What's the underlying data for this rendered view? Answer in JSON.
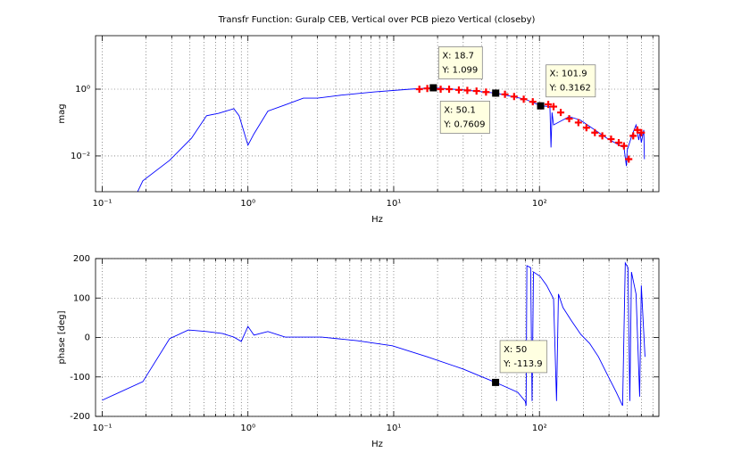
{
  "chart_data": [
    {
      "type": "line",
      "title": "Transfr Function: Guralp CEB, Vertical over PCB piezo Vertical (closeby)",
      "xlabel": "Hz",
      "ylabel": "mag",
      "xscale": "log",
      "yscale": "log",
      "grid": true,
      "xlim": [
        0.09,
        660
      ],
      "ylim": [
        0.00085,
        40
      ],
      "xticks": [
        {
          "value": 0.1,
          "label": "10⁻¹"
        },
        {
          "value": 1,
          "label": "10⁰"
        },
        {
          "value": 10,
          "label": "10¹"
        },
        {
          "value": 100,
          "label": "10²"
        }
      ],
      "xminorticks": [
        0.2,
        0.3,
        0.4,
        0.5,
        0.6,
        0.7,
        0.8,
        0.9,
        2,
        3,
        4,
        5,
        6,
        7,
        8,
        9,
        20,
        30,
        40,
        50,
        60,
        70,
        80,
        90,
        200,
        300,
        400,
        500,
        600
      ],
      "yticks": [
        {
          "value": 0.01,
          "label": "10⁻²"
        },
        {
          "value": 1,
          "label": "10⁰"
        }
      ],
      "series": [
        {
          "color": "#0000ff",
          "marker": "none",
          "x": [
            0.175,
            0.19,
            0.29,
            0.41,
            0.52,
            0.63,
            0.8,
            0.87,
            1.0,
            1.1,
            1.37,
            1.77,
            2.4,
            3.0,
            4.2,
            7.4,
            13,
            18.7,
            30,
            50.1,
            80,
            101.9,
            118,
            120,
            122,
            125,
            160,
            190,
            240,
            290,
            360,
            380,
            395,
            400,
            430,
            460,
            480,
            490,
            500,
            520,
            525
          ],
          "values": [
            0.00085,
            0.0018,
            0.0074,
            0.034,
            0.16,
            0.19,
            0.26,
            0.16,
            0.021,
            0.046,
            0.22,
            0.33,
            0.54,
            0.54,
            0.65,
            0.83,
            1.0,
            1.099,
            0.95,
            0.7609,
            0.5,
            0.3162,
            0.3,
            0.018,
            0.2,
            0.085,
            0.15,
            0.12,
            0.06,
            0.034,
            0.02,
            0.018,
            0.005,
            0.015,
            0.04,
            0.085,
            0.03,
            0.05,
            0.025,
            0.06,
            0.008
          ]
        },
        {
          "color": "#ff0000",
          "marker": "+",
          "x": [
            15,
            17,
            18.7,
            21,
            24,
            28,
            32,
            37,
            43,
            50.1,
            58,
            67,
            78,
            90,
            101.9,
            115,
            125,
            140,
            160,
            185,
            210,
            240,
            270,
            310,
            350,
            380,
            410,
            440,
            470,
            500
          ],
          "values": [
            1.0,
            1.05,
            1.099,
            1.0,
            1.0,
            0.95,
            0.92,
            0.88,
            0.82,
            0.7609,
            0.7,
            0.6,
            0.5,
            0.42,
            0.3162,
            0.35,
            0.3,
            0.2,
            0.13,
            0.1,
            0.07,
            0.05,
            0.04,
            0.032,
            0.025,
            0.02,
            0.008,
            0.04,
            0.06,
            0.05
          ]
        }
      ],
      "annotations": [
        {
          "x": 18.7,
          "y": 1.099,
          "text": [
            "X: 18.7",
            "Y: 1.099"
          ]
        },
        {
          "x": 50.1,
          "y": 0.7609,
          "text": [
            "X: 50.1",
            "Y: 0.7609"
          ]
        },
        {
          "x": 101.9,
          "y": 0.3162,
          "text": [
            "X: 101.9",
            "Y: 0.3162"
          ]
        }
      ]
    },
    {
      "type": "line",
      "xlabel": "Hz",
      "ylabel": "phase [deg]",
      "xscale": "log",
      "yscale": "linear",
      "grid": true,
      "xlim": [
        0.09,
        660
      ],
      "ylim": [
        -200,
        200
      ],
      "xticks": [
        {
          "value": 0.1,
          "label": "10⁻¹"
        },
        {
          "value": 1,
          "label": "10⁰"
        },
        {
          "value": 10,
          "label": "10¹"
        },
        {
          "value": 100,
          "label": "10²"
        }
      ],
      "xminorticks": [
        0.2,
        0.3,
        0.4,
        0.5,
        0.6,
        0.7,
        0.8,
        0.9,
        2,
        3,
        4,
        5,
        6,
        7,
        8,
        9,
        20,
        30,
        40,
        50,
        60,
        70,
        80,
        90,
        200,
        300,
        400,
        500,
        600
      ],
      "yticks": [
        -200,
        -100,
        0,
        100,
        200
      ],
      "series": [
        {
          "color": "#0000ff",
          "marker": "none",
          "x": [
            0.1,
            0.19,
            0.29,
            0.39,
            0.52,
            0.67,
            0.8,
            0.9,
            1.0,
            1.1,
            1.37,
            1.8,
            3.2,
            5.6,
            9.8,
            17,
            30,
            50,
            71,
            80,
            81,
            82,
            87,
            89,
            91,
            101,
            112,
            125,
            131,
            135,
            145,
            166,
            192,
            221,
            254,
            292,
            337,
            372,
            388,
            405,
            417,
            428,
            460,
            487,
            500,
            530
          ],
          "values": [
            -159,
            -112,
            -3,
            19,
            15,
            10,
            1,
            -10,
            28,
            6,
            15,
            1,
            1,
            -8,
            -21,
            -49,
            -80,
            -113.9,
            -139,
            -162,
            -173,
            182,
            177,
            -161,
            166,
            155,
            132,
            98,
            -161,
            110,
            76,
            42,
            8,
            -15,
            -49,
            -94,
            -139,
            -173,
            189,
            177,
            -161,
            166,
            110,
            -150,
            132,
            -49
          ]
        }
      ],
      "annotations": [
        {
          "x": 50,
          "y": -113.9,
          "text": [
            "X: 50",
            "Y: -113.9"
          ]
        }
      ]
    }
  ]
}
